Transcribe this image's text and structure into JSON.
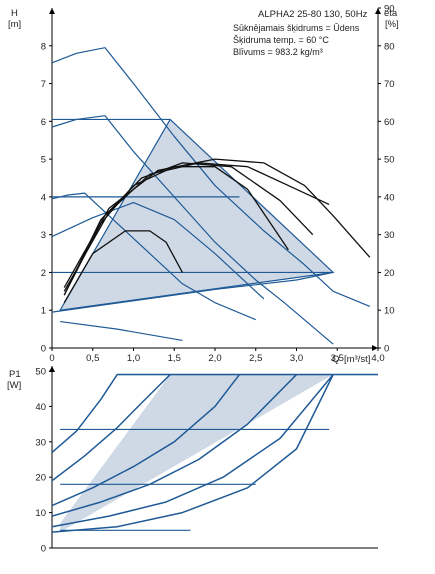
{
  "chart_data": [
    {
      "type": "line",
      "ylabel": "H",
      "yunit": "[m]",
      "y2label": "eta",
      "y2unit": "[%]",
      "xlabel": "Q",
      "xunit": "[m³/st]",
      "xlim": [
        0,
        4
      ],
      "ylim": [
        0,
        9
      ],
      "y2lim": [
        0,
        90
      ],
      "xticks": [
        "0",
        "0,5",
        "1,0",
        "1,5",
        "2,0",
        "2,5",
        "3,0",
        "3,5",
        "4,0"
      ],
      "xtick_values": [
        0,
        0.5,
        1.0,
        1.5,
        2.0,
        2.5,
        3.0,
        3.5,
        4.0
      ],
      "yticks": [
        0,
        1,
        2,
        3,
        4,
        5,
        6,
        7,
        8
      ],
      "y2ticks": [
        0,
        10,
        20,
        30,
        40,
        50,
        60,
        70,
        80,
        90
      ],
      "grid": false,
      "info_box": {
        "title": "ALPHA2 25-80 130, 50Hz",
        "lines": [
          "Sūknējamais šķidrums = Ūdens",
          "Šķidruma temp. = 60 °C",
          "Blīvums = 983.2 kg/m³"
        ]
      },
      "operating_area": [
        [
          0.1,
          1.0
        ],
        [
          1.45,
          6.05
        ],
        [
          3.45,
          2.0
        ]
      ],
      "series": [
        {
          "role": "head-curve",
          "x": [
            0,
            0.3,
            0.65,
            1.0,
            1.5,
            2.0,
            2.6,
            3.1,
            3.45,
            3.9
          ],
          "y": [
            7.55,
            7.8,
            7.95,
            7.0,
            5.6,
            4.3,
            3.1,
            2.2,
            1.5,
            1.1
          ]
        },
        {
          "role": "head-curve",
          "x": [
            0,
            0.3,
            0.65,
            1.0,
            1.5,
            2.0,
            2.5,
            2.85,
            3.45
          ],
          "y": [
            5.85,
            6.05,
            6.15,
            5.2,
            4.0,
            2.8,
            1.8,
            1.2,
            0.1
          ]
        },
        {
          "role": "head-curve",
          "x": [
            0,
            0.2,
            0.4,
            0.8,
            1.2,
            1.6,
            2.0,
            2.5
          ],
          "y": [
            3.95,
            4.05,
            4.1,
            3.3,
            2.5,
            1.7,
            1.2,
            0.75
          ]
        },
        {
          "role": "head-curve",
          "x": [
            0,
            0.5,
            1.0,
            1.5,
            2.0,
            2.6
          ],
          "y": [
            2.95,
            3.45,
            3.85,
            3.4,
            2.5,
            1.3
          ]
        },
        {
          "role": "head-curve",
          "x": [
            0,
            1.0,
            2.0,
            3.0,
            3.45
          ],
          "y": [
            0.95,
            1.25,
            1.55,
            1.8,
            2.0
          ]
        },
        {
          "role": "head-curve",
          "x": [
            0.1,
            0.8,
            1.6
          ],
          "y": [
            0.7,
            0.5,
            0.2
          ]
        },
        {
          "role": "constant-head",
          "x": [
            0,
            1.45
          ],
          "y": [
            6.05,
            6.05
          ]
        },
        {
          "role": "constant-head",
          "x": [
            0,
            2.3
          ],
          "y": [
            4.0,
            4.0
          ]
        },
        {
          "role": "constant-head",
          "x": [
            0,
            3.45
          ],
          "y": [
            2.0,
            2.0
          ]
        },
        {
          "role": "efficiency",
          "x": [
            0.15,
            0.6,
            1.0,
            1.5,
            2.0,
            2.4,
            2.9
          ],
          "y2": [
            14,
            33,
            43,
            48,
            48,
            42,
            26
          ]
        },
        {
          "role": "efficiency",
          "x": [
            0.15,
            0.6,
            1.1,
            1.6,
            2.2,
            2.8,
            3.2
          ],
          "y2": [
            14,
            34,
            45,
            49,
            48,
            39,
            30
          ]
        },
        {
          "role": "efficiency",
          "x": [
            0.15,
            0.7,
            1.2,
            1.8,
            2.4,
            3.0,
            3.4
          ],
          "y2": [
            15,
            36,
            46,
            49,
            48,
            42,
            38
          ]
        },
        {
          "role": "efficiency",
          "x": [
            0.15,
            0.7,
            1.3,
            2.0,
            2.6,
            3.1,
            3.45,
            3.9
          ],
          "y2": [
            16,
            37,
            47,
            50,
            49,
            43,
            35,
            24
          ]
        },
        {
          "role": "efficiency",
          "x": [
            0.15,
            0.5,
            0.9,
            1.2,
            1.4,
            1.6
          ],
          "y2": [
            12,
            25,
            31,
            31,
            28,
            20
          ]
        }
      ]
    },
    {
      "type": "line",
      "ylabel": "P1",
      "yunit": "[W]",
      "xlim": [
        0,
        4
      ],
      "ylim": [
        0,
        50
      ],
      "yticks": [
        0,
        10,
        20,
        30,
        40,
        50
      ],
      "grid": false,
      "operating_area": [
        [
          0.1,
          7.0
        ],
        [
          1.45,
          49
        ],
        [
          3.45,
          49
        ],
        [
          0.1,
          4.5
        ]
      ],
      "series": [
        {
          "role": "power-curve",
          "x": [
            0,
            0.3,
            0.6,
            0.8,
            4.0
          ],
          "y": [
            27,
            33,
            42,
            49,
            49
          ]
        },
        {
          "role": "power-curve",
          "x": [
            0,
            0.4,
            0.8,
            1.1,
            1.45
          ],
          "y": [
            19,
            26,
            34,
            41,
            49
          ]
        },
        {
          "role": "power-curve",
          "x": [
            0,
            0.5,
            1.0,
            1.5,
            2.0,
            2.3
          ],
          "y": [
            12,
            17,
            23,
            30,
            40,
            49
          ]
        },
        {
          "role": "power-curve",
          "x": [
            0,
            0.6,
            1.2,
            1.8,
            2.4,
            3.0
          ],
          "y": [
            9,
            13,
            18,
            25,
            35,
            49
          ]
        },
        {
          "role": "power-curve",
          "x": [
            0,
            0.7,
            1.4,
            2.1,
            2.8,
            3.45
          ],
          "y": [
            6,
            9,
            13,
            20,
            31,
            49
          ]
        },
        {
          "role": "power-curve",
          "x": [
            0,
            0.8,
            1.6,
            2.4,
            3.0,
            3.45
          ],
          "y": [
            4.5,
            6,
            10,
            17,
            28,
            49
          ]
        },
        {
          "role": "constant-power",
          "x": [
            0.8,
            4.0
          ],
          "y": [
            49,
            49
          ]
        },
        {
          "role": "constant-power",
          "x": [
            0.1,
            3.4
          ],
          "y": [
            33.5,
            33.5
          ]
        },
        {
          "role": "constant-power",
          "x": [
            0.1,
            2.5
          ],
          "y": [
            18,
            18
          ]
        },
        {
          "role": "constant-power",
          "x": [
            0.1,
            1.7
          ],
          "y": [
            5,
            5
          ]
        }
      ]
    }
  ]
}
